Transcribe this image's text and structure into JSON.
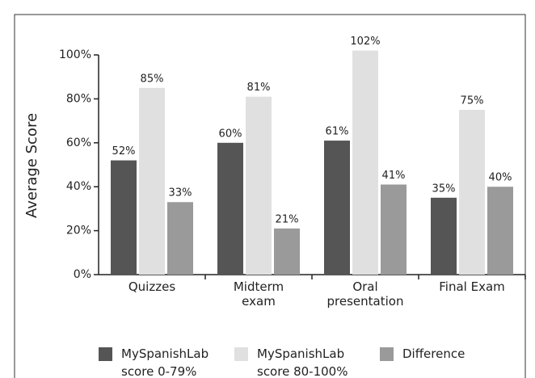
{
  "chart_data": {
    "type": "bar",
    "y_label": "Average Score",
    "categories": [
      "Quizzes",
      "Midterm exam",
      "Oral presentation",
      "Final Exam"
    ],
    "series": [
      {
        "name": "MySpanishLab score 0-79%",
        "color": "#555555",
        "values": [
          52,
          60,
          61,
          35
        ],
        "value_labels": [
          "52%",
          "60%",
          "61%",
          "35%"
        ]
      },
      {
        "name": "MySpanishLab score 80-100%",
        "color": "#e0e0e0",
        "values": [
          85,
          81,
          102,
          75
        ],
        "value_labels": [
          "85%",
          "81%",
          "102%",
          "75%"
        ]
      },
      {
        "name": "Difference",
        "color": "#9a9a9a",
        "values": [
          33,
          21,
          41,
          40
        ],
        "value_labels": [
          "33%",
          "21%",
          "41%",
          "40%"
        ]
      }
    ],
    "ylim": [
      0,
      100
    ],
    "yticks": [
      {
        "value": 0,
        "label": "0%"
      },
      {
        "value": 20,
        "label": "20%"
      },
      {
        "value": 40,
        "label": "40%"
      },
      {
        "value": 60,
        "label": "60%"
      },
      {
        "value": 80,
        "label": "80%"
      },
      {
        "value": 100,
        "label": "100%"
      }
    ]
  }
}
